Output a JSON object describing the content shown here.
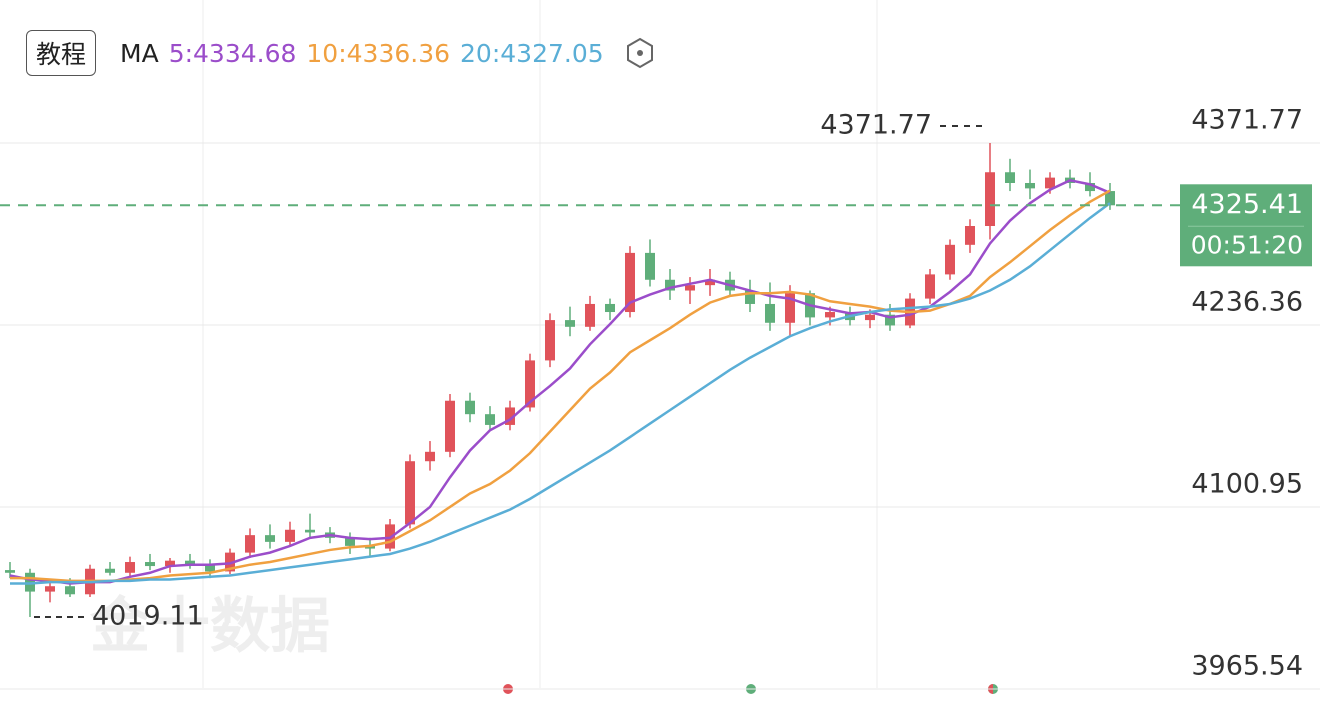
{
  "header": {
    "button": "教程",
    "ma_label": "MA",
    "ma_items": [
      "5:4334.68",
      "10:4336.36",
      "20:4327.05"
    ]
  },
  "watermark": "金十数据",
  "chart_data": {
    "type": "candlestick",
    "up_color": "#e0535a",
    "down_color": "#5fae7a",
    "ylim": [
      3949.16,
      4472.2
    ],
    "yticks": [
      3965.54,
      4100.95,
      4236.36,
      4371.77
    ],
    "grid": true,
    "current_price": 4325.41,
    "countdown": "00:51:20",
    "ohlc": [
      [
        4054,
        4060,
        4048,
        4052
      ],
      [
        4052,
        4055,
        4019.11,
        4038
      ],
      [
        4038,
        4046,
        4030,
        4042
      ],
      [
        4042,
        4048,
        4034,
        4036
      ],
      [
        4036,
        4058,
        4034,
        4055
      ],
      [
        4055,
        4060,
        4050,
        4052
      ],
      [
        4052,
        4064,
        4049,
        4060
      ],
      [
        4060,
        4066,
        4054,
        4057
      ],
      [
        4057,
        4063,
        4052,
        4061
      ],
      [
        4061,
        4066,
        4055,
        4058
      ],
      [
        4058,
        4062,
        4048,
        4053
      ],
      [
        4053,
        4070,
        4051,
        4067
      ],
      [
        4067,
        4085,
        4063,
        4080
      ],
      [
        4080,
        4088,
        4070,
        4075
      ],
      [
        4075,
        4090,
        4072,
        4084
      ],
      [
        4084,
        4096,
        4078,
        4082
      ],
      [
        4082,
        4086,
        4074,
        4078
      ],
      [
        4078,
        4082,
        4066,
        4072
      ],
      [
        4072,
        4078,
        4064,
        4070
      ],
      [
        4070,
        4092,
        4068,
        4088
      ],
      [
        4088,
        4140,
        4085,
        4135
      ],
      [
        4135,
        4150,
        4128,
        4142
      ],
      [
        4142,
        4185,
        4138,
        4180
      ],
      [
        4180,
        4186,
        4164,
        4170
      ],
      [
        4170,
        4176,
        4158,
        4162
      ],
      [
        4162,
        4180,
        4158,
        4175
      ],
      [
        4175,
        4215,
        4172,
        4210
      ],
      [
        4210,
        4245,
        4205,
        4240
      ],
      [
        4240,
        4250,
        4228,
        4235
      ],
      [
        4235,
        4258,
        4232,
        4252
      ],
      [
        4252,
        4256,
        4240,
        4246
      ],
      [
        4246,
        4295,
        4242,
        4290
      ],
      [
        4290,
        4300,
        4265,
        4270
      ],
      [
        4270,
        4278,
        4255,
        4262
      ],
      [
        4262,
        4272,
        4252,
        4266
      ],
      [
        4266,
        4278,
        4258,
        4270
      ],
      [
        4270,
        4276,
        4258,
        4262
      ],
      [
        4262,
        4270,
        4246,
        4252
      ],
      [
        4252,
        4268,
        4232,
        4238
      ],
      [
        4238,
        4266,
        4228,
        4260
      ],
      [
        4260,
        4262,
        4236,
        4242
      ],
      [
        4242,
        4250,
        4236,
        4246
      ],
      [
        4246,
        4250,
        4236,
        4240
      ],
      [
        4240,
        4248,
        4234,
        4244
      ],
      [
        4244,
        4252,
        4232,
        4236
      ],
      [
        4236,
        4260,
        4234,
        4256
      ],
      [
        4256,
        4278,
        4252,
        4274
      ],
      [
        4274,
        4300,
        4270,
        4296
      ],
      [
        4296,
        4315,
        4290,
        4310
      ],
      [
        4310,
        4371.77,
        4300,
        4350
      ],
      [
        4350,
        4360,
        4336,
        4342
      ],
      [
        4342,
        4352,
        4330,
        4338
      ],
      [
        4338,
        4350,
        4334,
        4346
      ],
      [
        4346,
        4352,
        4338,
        4342
      ],
      [
        4342,
        4350,
        4332,
        4336
      ],
      [
        4336,
        4342,
        4322,
        4325.41
      ]
    ],
    "series": [
      {
        "color": "#9b4dca",
        "values": [
          4050,
          4047,
          4046,
          4044,
          4045,
          4045,
          4049,
          4052,
          4057,
          4058,
          4058,
          4059,
          4064,
          4067,
          4072,
          4078,
          4080,
          4078,
          4077,
          4078,
          4089,
          4101,
          4123,
          4143,
          4158,
          4166,
          4179,
          4191,
          4204,
          4222,
          4237,
          4253,
          4259,
          4264,
          4267,
          4270,
          4266,
          4262,
          4258,
          4256,
          4251,
          4248,
          4245,
          4246,
          4242,
          4244,
          4250,
          4261,
          4274,
          4297,
          4314,
          4327,
          4337,
          4344,
          4341,
          4334.68
        ]
      },
      {
        "color": "#f0a040",
        "values": [
          4048,
          4048,
          4047,
          4046,
          4046,
          4046,
          4047,
          4048,
          4050,
          4051,
          4052,
          4055,
          4058,
          4060,
          4063,
          4066,
          4069,
          4071,
          4072,
          4075,
          4083,
          4091,
          4101,
          4111,
          4118,
          4128,
          4141,
          4157,
          4173,
          4189,
          4201,
          4216,
          4225,
          4234,
          4244,
          4253,
          4258,
          4260,
          4260,
          4261,
          4259,
          4254,
          4252,
          4250,
          4247,
          4246,
          4247,
          4252,
          4258,
          4272,
          4283,
          4295,
          4307,
          4318,
          4328,
          4336.36
        ]
      },
      {
        "color": "#5aaed6",
        "values": [
          4044,
          4044,
          4045,
          4045,
          4045,
          4046,
          4046,
          4047,
          4047,
          4048,
          4049,
          4050,
          4052,
          4054,
          4056,
          4058,
          4060,
          4062,
          4064,
          4066,
          4070,
          4075,
          4081,
          4087,
          4093,
          4099,
          4107,
          4116,
          4125,
          4134,
          4143,
          4153,
          4163,
          4173,
          4183,
          4193,
          4203,
          4212,
          4220,
          4228,
          4234,
          4239,
          4243,
          4246,
          4248,
          4249,
          4250,
          4252,
          4256,
          4262,
          4270,
          4280,
          4292,
          4304,
          4316,
          4327.05
        ]
      }
    ]
  }
}
